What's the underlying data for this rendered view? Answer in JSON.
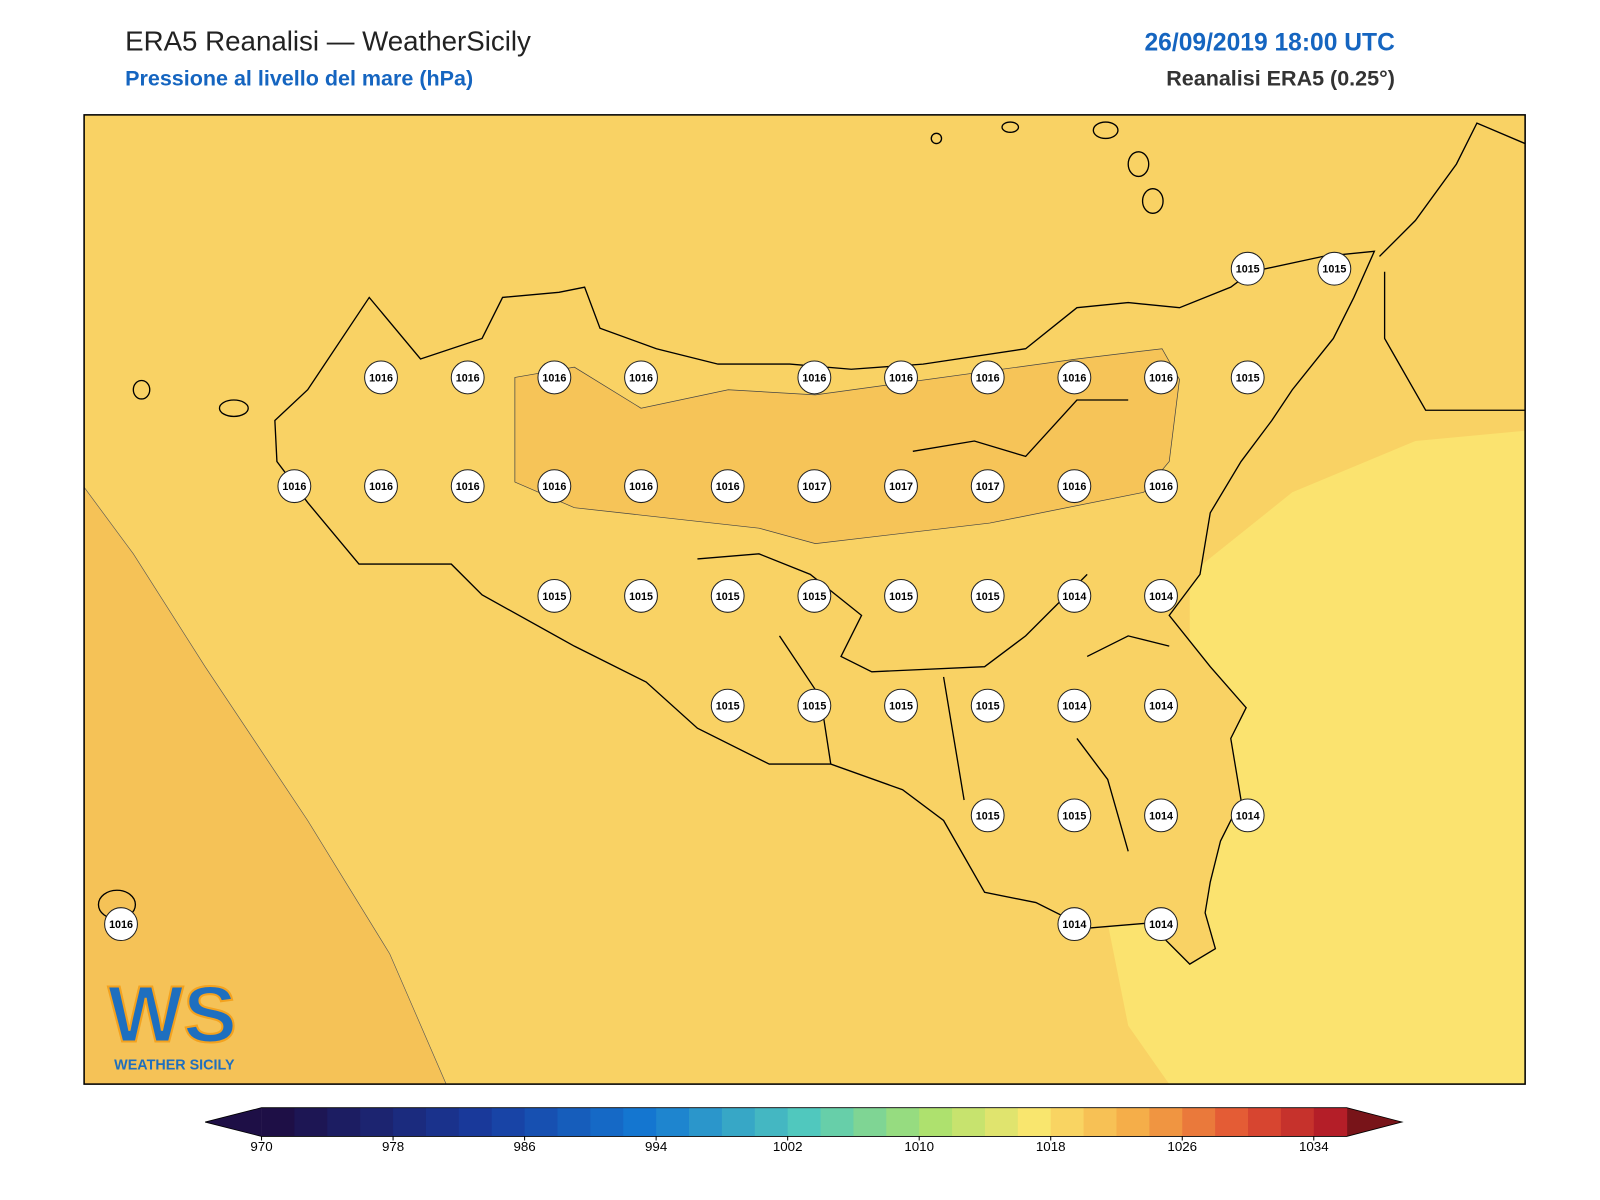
{
  "header": {
    "title": "ERA5 Reanalisi — WeatherSicily",
    "subtitle": "Pressione al livello del mare (hPa)",
    "date": "26/09/2019 18:00 UTC",
    "source": "Reanalisi ERA5 (0.25°)"
  },
  "stations": [
    1015,
    1015,
    1016,
    1016,
    1016,
    1016,
    1016,
    1016,
    1016,
    1016,
    1016,
    1015,
    1016,
    1016,
    1016,
    1016,
    1016,
    1016,
    1017,
    1017,
    1017,
    1016,
    1016,
    1015,
    1015,
    1015,
    1015,
    1015,
    1015,
    1014,
    1014,
    1015,
    1015,
    1015,
    1015,
    1014,
    1014,
    1015,
    1015,
    1014,
    1014,
    1016,
    1014,
    1014
  ],
  "colorbar": {
    "range": [
      970,
      1036
    ],
    "step": 2,
    "ticks": [
      970,
      978,
      986,
      994,
      1002,
      1010,
      1018,
      1026,
      1034
    ]
  },
  "logo": {
    "text": "WS",
    "caption": "WEATHER SICILY"
  }
}
